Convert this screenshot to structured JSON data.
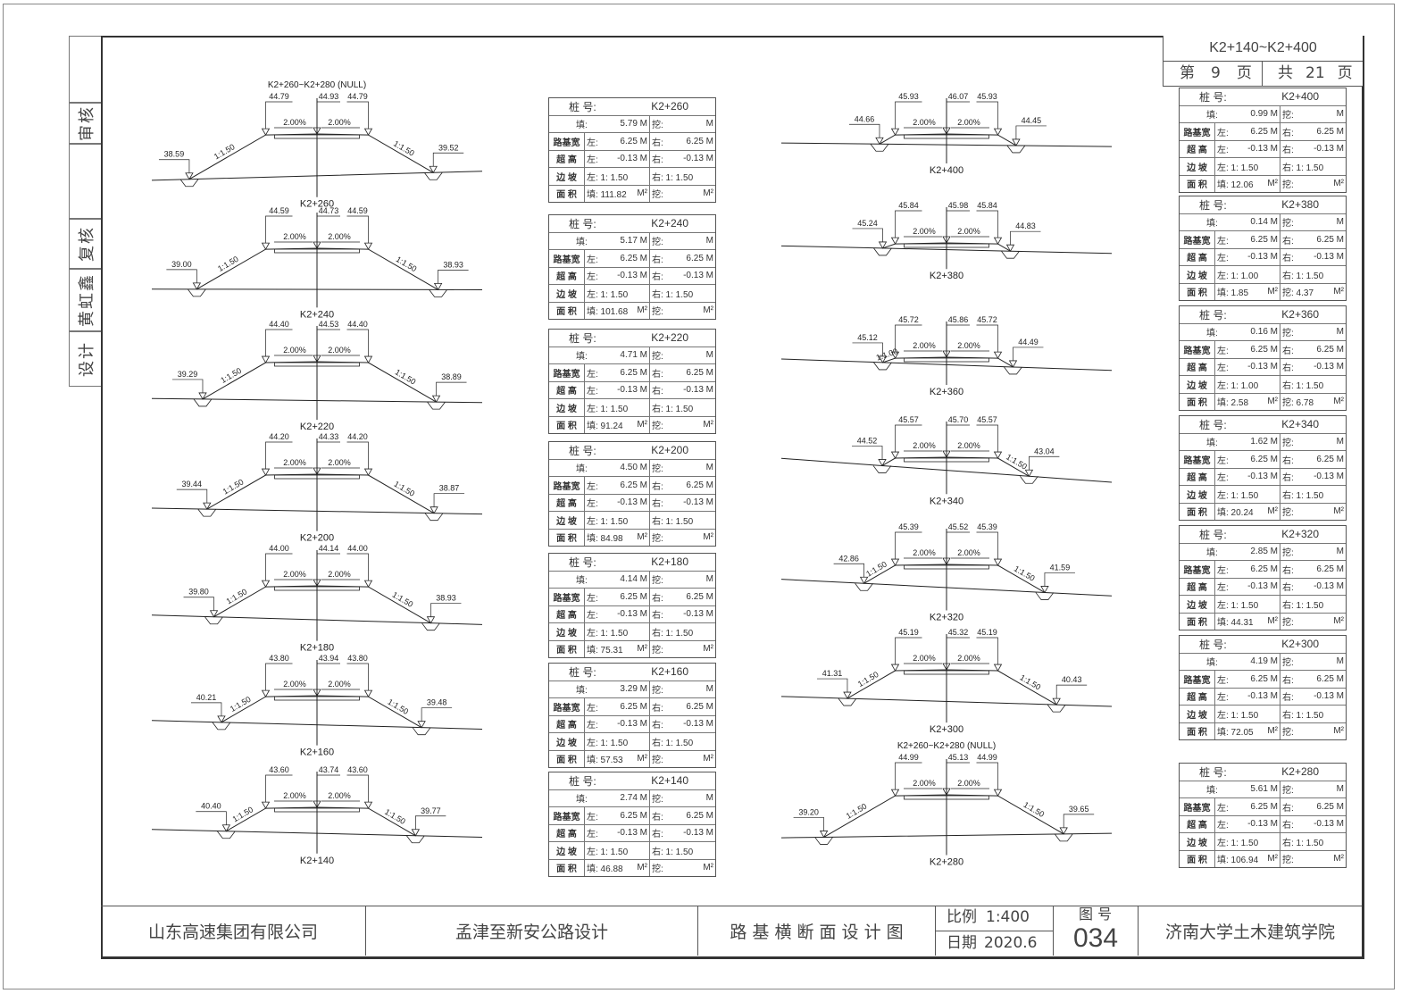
{
  "header": {
    "range": "K2+140~K2+400",
    "page_prefix": "第",
    "page_no": "9",
    "page_suffix": "页",
    "total_prefix": "共",
    "total_pages": "21",
    "total_suffix": "页"
  },
  "side_strip": [
    "审核",
    "复核",
    "黄虹鑫",
    "设计"
  ],
  "title_block": {
    "company": "山东高速集团有限公司",
    "project": "孟津至新安公路设计",
    "drawing_title": "路 基 横 断 面 设 计 图",
    "scale_label": "比例",
    "scale": "1:400",
    "date_label": "日期",
    "date": "2020.6",
    "figno_label": "图 号",
    "figno": "034",
    "school": "济南大学土木建筑学院"
  },
  "table_labels": {
    "station": "桩 号:",
    "fill": "填:",
    "cut": "挖:",
    "width": "路基宽",
    "super": "超 高",
    "slope": "边 坡",
    "area": "面 积",
    "left": "左:",
    "right": "右:",
    "unit_m": "M",
    "unit_m2": "M²"
  },
  "sections_left": [
    {
      "station": "K2+260",
      "top_label": "K2+260~K2+280 (NULL)",
      "edge_l": "44.79",
      "center": "44.93",
      "edge_r": "44.79",
      "toe_l": "38.59",
      "toe_r": "39.52",
      "slope_l": "1:1.50",
      "slope_r": "1:1.50"
    },
    {
      "station": "K2+240",
      "edge_l": "44.59",
      "center": "44.73",
      "edge_r": "44.59",
      "toe_l": "39.00",
      "toe_r": "38.93",
      "slope_l": "1:1.50",
      "slope_r": "1:1.50"
    },
    {
      "station": "K2+220",
      "edge_l": "44.40",
      "center": "44.53",
      "edge_r": "44.40",
      "toe_l": "39.29",
      "toe_r": "38.89",
      "slope_l": "1:1.50",
      "slope_r": "1:1.50"
    },
    {
      "station": "K2+200",
      "edge_l": "44.20",
      "center": "44.33",
      "edge_r": "44.20",
      "toe_l": "39.44",
      "toe_r": "38.87",
      "slope_l": "1:1.50",
      "slope_r": "1:1.50"
    },
    {
      "station": "K2+180",
      "edge_l": "44.00",
      "center": "44.14",
      "edge_r": "44.00",
      "toe_l": "39.80",
      "toe_r": "38.93",
      "slope_l": "1:1.50",
      "slope_r": "1:1.50"
    },
    {
      "station": "K2+160",
      "edge_l": "43.80",
      "center": "43.94",
      "edge_r": "43.80",
      "toe_l": "40.21",
      "toe_r": "39.48",
      "slope_l": "1:1.50",
      "slope_r": "1:1.50"
    },
    {
      "station": "K2+140",
      "edge_l": "43.60",
      "center": "43.74",
      "edge_r": "43.60",
      "toe_l": "40.40",
      "toe_r": "39.77",
      "slope_l": "1:1.50",
      "slope_r": "1:1.50"
    }
  ],
  "sections_right": [
    {
      "station": "K2+400",
      "edge_l": "45.93",
      "center": "46.07",
      "edge_r": "45.93",
      "toe_l": "44.66",
      "toe_r": "44.45",
      "slope_l": "",
      "slope_r": ""
    },
    {
      "station": "K2+380",
      "edge_l": "45.84",
      "center": "45.98",
      "edge_r": "45.84",
      "toe_l": "45.24",
      "toe_r": "44.83",
      "slope_l": "",
      "slope_r": ""
    },
    {
      "station": "K2+360",
      "edge_l": "45.72",
      "center": "45.86",
      "edge_r": "45.72",
      "toe_l": "45.12",
      "toe_r": "44.49",
      "slope_l": "1:1.00",
      "slope_r": ""
    },
    {
      "station": "K2+340",
      "edge_l": "45.57",
      "center": "45.70",
      "edge_r": "45.57",
      "toe_l": "44.52",
      "toe_r": "43.04",
      "slope_l": "",
      "slope_r": "1:1.50"
    },
    {
      "station": "K2+320",
      "edge_l": "45.39",
      "center": "45.52",
      "edge_r": "45.39",
      "toe_l": "42.86",
      "toe_r": "41.59",
      "slope_l": "1:1.50",
      "slope_r": "1:1.50"
    },
    {
      "station": "K2+300",
      "edge_l": "45.19",
      "center": "45.32",
      "edge_r": "45.19",
      "toe_l": "41.31",
      "toe_r": "40.43",
      "slope_l": "1:1.50",
      "slope_r": "1:1.50"
    },
    {
      "station": "K2+280",
      "top_label": "K2+260~K2+280 (NULL)",
      "edge_l": "44.99",
      "center": "45.13",
      "edge_r": "44.99",
      "toe_l": "39.20",
      "toe_r": "39.65",
      "slope_l": "1:1.50",
      "slope_r": "1:1.50"
    }
  ],
  "crossfall": "2.00%",
  "tables_mid": [
    {
      "station": "K2+260",
      "fill": "5.79",
      "cut": "",
      "width_l": "6.25",
      "width_r": "6.25",
      "super_l": "-0.13",
      "super_r": "-0.13",
      "slope_l": "1: 1.50",
      "slope_r": "1: 1.50",
      "area_fill": "111.82",
      "area_cut": ""
    },
    {
      "station": "K2+240",
      "fill": "5.17",
      "cut": "",
      "width_l": "6.25",
      "width_r": "6.25",
      "super_l": "-0.13",
      "super_r": "-0.13",
      "slope_l": "1: 1.50",
      "slope_r": "1: 1.50",
      "area_fill": "101.68",
      "area_cut": ""
    },
    {
      "station": "K2+220",
      "fill": "4.71",
      "cut": "",
      "width_l": "6.25",
      "width_r": "6.25",
      "super_l": "-0.13",
      "super_r": "-0.13",
      "slope_l": "1: 1.50",
      "slope_r": "1: 1.50",
      "area_fill": "91.24",
      "area_cut": ""
    },
    {
      "station": "K2+200",
      "fill": "4.50",
      "cut": "",
      "width_l": "6.25",
      "width_r": "6.25",
      "super_l": "-0.13",
      "super_r": "-0.13",
      "slope_l": "1: 1.50",
      "slope_r": "1: 1.50",
      "area_fill": "84.98",
      "area_cut": ""
    },
    {
      "station": "K2+180",
      "fill": "4.14",
      "cut": "",
      "width_l": "6.25",
      "width_r": "6.25",
      "super_l": "-0.13",
      "super_r": "-0.13",
      "slope_l": "1: 1.50",
      "slope_r": "1: 1.50",
      "area_fill": "75.31",
      "area_cut": ""
    },
    {
      "station": "K2+160",
      "fill": "3.29",
      "cut": "",
      "width_l": "6.25",
      "width_r": "6.25",
      "super_l": "-0.13",
      "super_r": "-0.13",
      "slope_l": "1: 1.50",
      "slope_r": "1: 1.50",
      "area_fill": "57.53",
      "area_cut": ""
    },
    {
      "station": "K2+140",
      "fill": "2.74",
      "cut": "",
      "width_l": "6.25",
      "width_r": "6.25",
      "super_l": "-0.13",
      "super_r": "-0.13",
      "slope_l": "1: 1.50",
      "slope_r": "1: 1.50",
      "area_fill": "46.88",
      "area_cut": ""
    }
  ],
  "tables_right": [
    {
      "station": "K2+400",
      "fill": "0.99",
      "cut": "",
      "width_l": "6.25",
      "width_r": "6.25",
      "super_l": "-0.13",
      "super_r": "-0.13",
      "slope_l": "1: 1.50",
      "slope_r": "1: 1.50",
      "area_fill": "12.06",
      "area_cut": ""
    },
    {
      "station": "K2+380",
      "fill": "0.14",
      "cut": "",
      "width_l": "6.25",
      "width_r": "6.25",
      "super_l": "-0.13",
      "super_r": "-0.13",
      "slope_l": "1: 1.00",
      "slope_r": "1: 1.50",
      "area_fill": "1.85",
      "area_cut": "4.37"
    },
    {
      "station": "K2+360",
      "fill": "0.16",
      "cut": "",
      "width_l": "6.25",
      "width_r": "6.25",
      "super_l": "-0.13",
      "super_r": "-0.13",
      "slope_l": "1: 1.00",
      "slope_r": "1: 1.50",
      "area_fill": "2.58",
      "area_cut": "6.78"
    },
    {
      "station": "K2+340",
      "fill": "1.62",
      "cut": "",
      "width_l": "6.25",
      "width_r": "6.25",
      "super_l": "-0.13",
      "super_r": "-0.13",
      "slope_l": "1: 1.50",
      "slope_r": "1: 1.50",
      "area_fill": "20.24",
      "area_cut": ""
    },
    {
      "station": "K2+320",
      "fill": "2.85",
      "cut": "",
      "width_l": "6.25",
      "width_r": "6.25",
      "super_l": "-0.13",
      "super_r": "-0.13",
      "slope_l": "1: 1.50",
      "slope_r": "1: 1.50",
      "area_fill": "44.31",
      "area_cut": ""
    },
    {
      "station": "K2+300",
      "fill": "4.19",
      "cut": "",
      "width_l": "6.25",
      "width_r": "6.25",
      "super_l": "-0.13",
      "super_r": "-0.13",
      "slope_l": "1: 1.50",
      "slope_r": "1: 1.50",
      "area_fill": "72.05",
      "area_cut": ""
    },
    {
      "station": "K2+280",
      "fill": "5.61",
      "cut": "",
      "width_l": "6.25",
      "width_r": "6.25",
      "super_l": "-0.13",
      "super_r": "-0.13",
      "slope_l": "1: 1.50",
      "slope_r": "1: 1.50",
      "area_fill": "106.94",
      "area_cut": ""
    }
  ]
}
